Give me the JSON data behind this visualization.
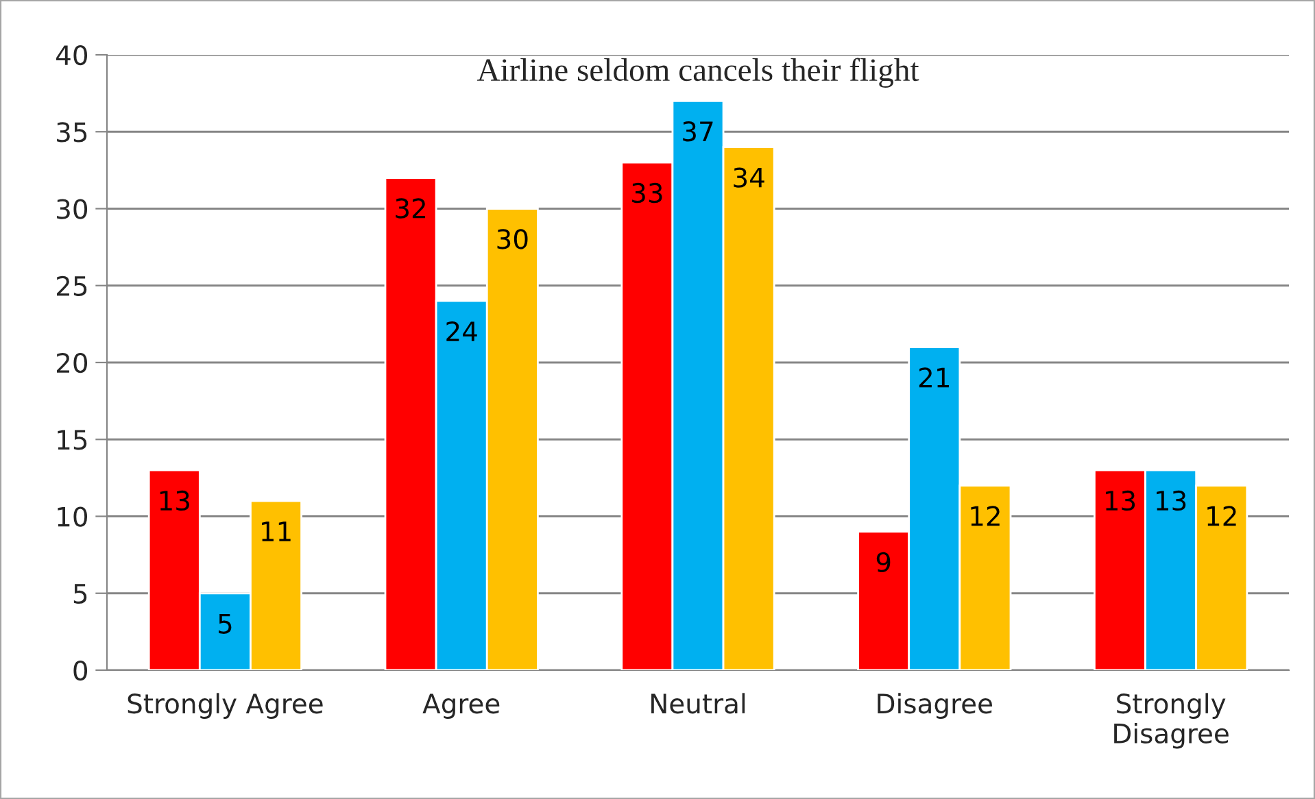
{
  "chart_data": {
    "type": "bar",
    "title": "Airline seldom cancels their flight",
    "categories": [
      "Strongly Agree",
      "Agree",
      "Neutral",
      "Disagree",
      "Strongly\nDisagree"
    ],
    "series": [
      {
        "color": "#ff0000",
        "values": [
          13,
          32,
          33,
          9,
          13
        ]
      },
      {
        "color": "#00b0f0",
        "values": [
          5,
          24,
          37,
          21,
          13
        ]
      },
      {
        "color": "#ffc000",
        "values": [
          11,
          30,
          34,
          12,
          12
        ]
      }
    ],
    "ylim": [
      0,
      40
    ],
    "yticks": [
      0,
      5,
      10,
      15,
      20,
      25,
      30,
      35,
      40
    ],
    "grid": "y",
    "data_labels": true,
    "legend": false
  }
}
